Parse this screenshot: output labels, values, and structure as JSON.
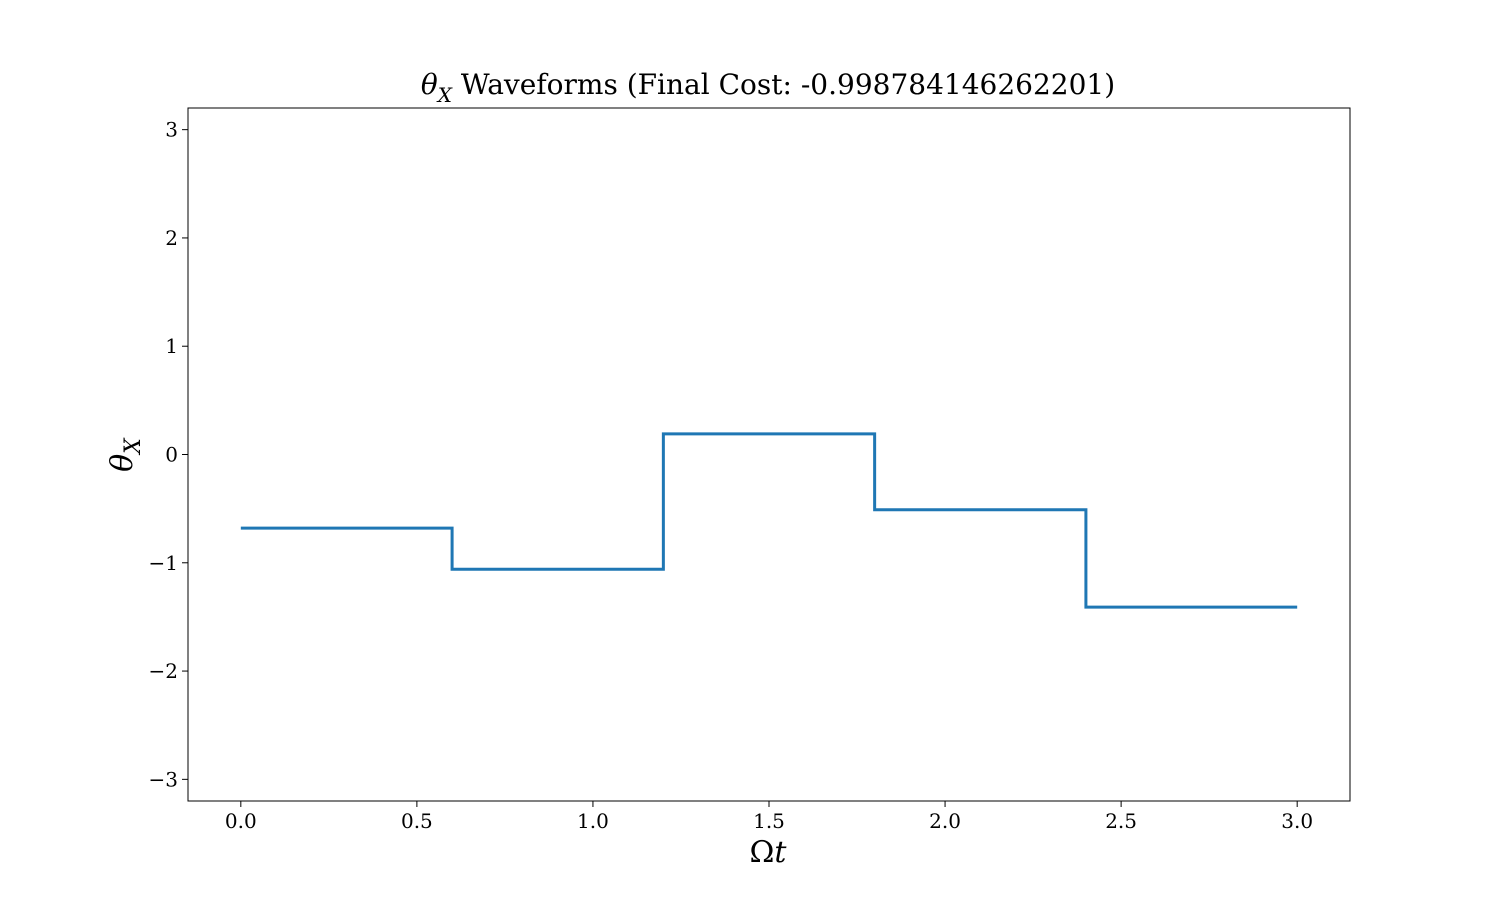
{
  "chart_data": {
    "type": "line",
    "title": {
      "symbol": "θ",
      "subscript": "X",
      "text": " Waveforms (Final Cost: -0.998784146262201)"
    },
    "xlabel": {
      "symbol": "Ω",
      "variable": "t"
    },
    "ylabel": {
      "symbol": "θ",
      "subscript": "X"
    },
    "xlim": [
      -0.15,
      3.15
    ],
    "ylim": [
      -3.2,
      3.2
    ],
    "xticks": [
      0.0,
      0.5,
      1.0,
      1.5,
      2.0,
      2.5,
      3.0
    ],
    "xtick_labels": [
      "0.0",
      "0.5",
      "1.0",
      "1.5",
      "2.0",
      "2.5",
      "3.0"
    ],
    "yticks": [
      -3,
      -2,
      -1,
      0,
      1,
      2,
      3
    ],
    "ytick_labels": [
      "−3",
      "−2",
      "−1",
      "0",
      "1",
      "2",
      "3"
    ],
    "grid": false,
    "step": "post",
    "series": [
      {
        "color": "#1f77b4",
        "x": [
          0.0,
          0.6,
          1.2,
          1.8,
          2.4,
          3.0
        ],
        "y": [
          -0.68,
          -1.06,
          0.19,
          -0.51,
          -1.41,
          -1.41
        ]
      }
    ]
  }
}
